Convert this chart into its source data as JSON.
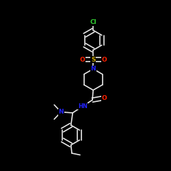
{
  "bg": "#000000",
  "wc": "#e8e8e8",
  "lw": 1.2,
  "dbo": 0.012,
  "fs": 6.5,
  "cl_color": "#33cc33",
  "s_color": "#ccaa00",
  "o_color": "#ff2200",
  "n_color": "#2222ff",
  "figsize": [
    2.5,
    2.5
  ],
  "dpi": 100,
  "xlim": [
    0.0,
    1.0
  ],
  "ylim": [
    0.0,
    1.0
  ]
}
